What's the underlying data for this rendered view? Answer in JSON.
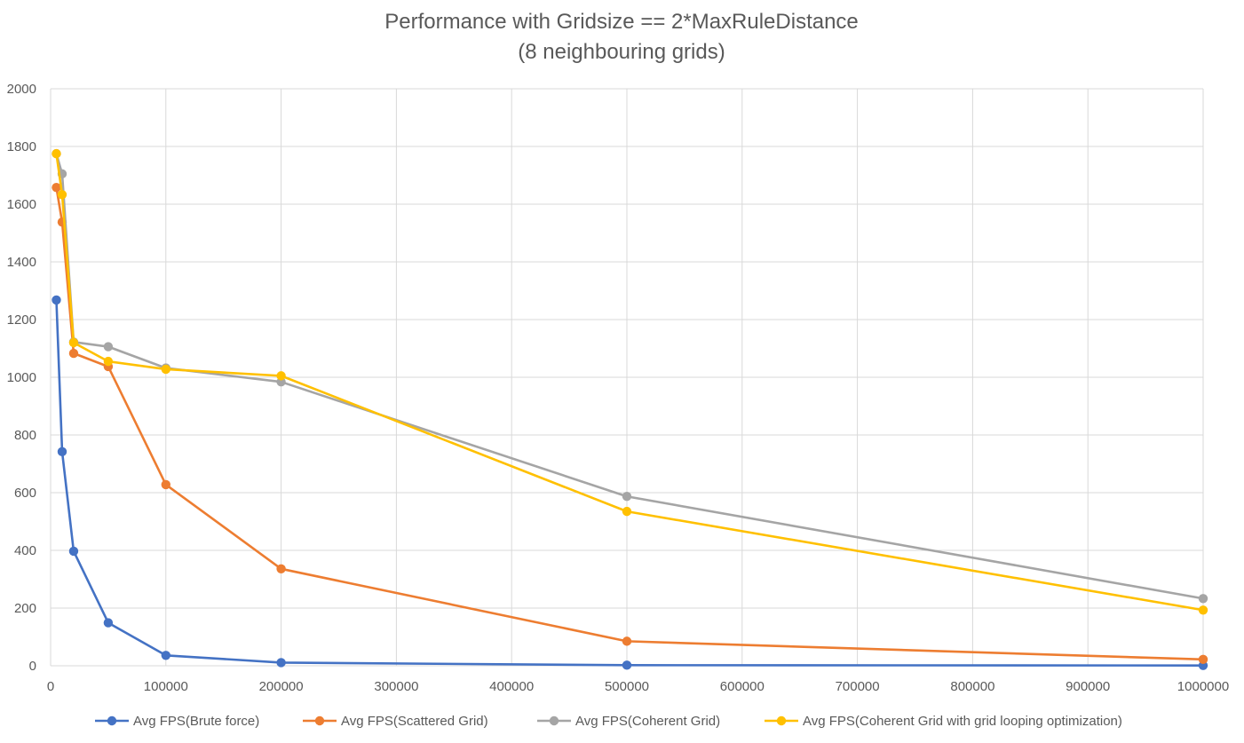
{
  "chart_data": {
    "type": "line",
    "title": "Performance with Gridsize == 2*MaxRuleDistance",
    "subtitle": "(8 neighbouring grids)",
    "xlabel": "",
    "ylabel": "",
    "xlim": [
      0,
      1000000
    ],
    "ylim": [
      0,
      2000
    ],
    "x_ticks": [
      0,
      100000,
      200000,
      300000,
      400000,
      500000,
      600000,
      700000,
      800000,
      900000,
      1000000
    ],
    "y_ticks": [
      0,
      200,
      400,
      600,
      800,
      1000,
      1200,
      1400,
      1600,
      1800,
      2000
    ],
    "x_tick_labels": [
      "0",
      "100000",
      "200000",
      "300000",
      "400000",
      "500000",
      "600000",
      "700000",
      "800000",
      "900000",
      "1000000"
    ],
    "y_tick_labels": [
      "0",
      "200",
      "400",
      "600",
      "800",
      "1000",
      "1200",
      "1400",
      "1600",
      "1800",
      "2000"
    ],
    "grid": true,
    "legend_position": "bottom",
    "x": [
      5000,
      10000,
      20000,
      50000,
      100000,
      200000,
      500000,
      1000000
    ],
    "series": [
      {
        "name": "Avg FPS(Brute force)",
        "color": "#4472C4",
        "values": [
          1268,
          742,
          397,
          149,
          36,
          11,
          2,
          1
        ]
      },
      {
        "name": "Avg FPS(Scattered Grid)",
        "color": "#ED7D31",
        "values": [
          1658,
          1538,
          1083,
          1037,
          628,
          336,
          85,
          22
        ]
      },
      {
        "name": "Avg FPS(Coherent Grid)",
        "color": "#A5A5A5",
        "values": [
          1775,
          1705,
          1122,
          1106,
          1032,
          984,
          587,
          233
        ]
      },
      {
        "name": "Avg FPS(Coherent Grid with grid looping optimization)",
        "color": "#FFC000",
        "values": [
          1775,
          1633,
          1120,
          1055,
          1028,
          1005,
          535,
          193
        ]
      }
    ]
  }
}
